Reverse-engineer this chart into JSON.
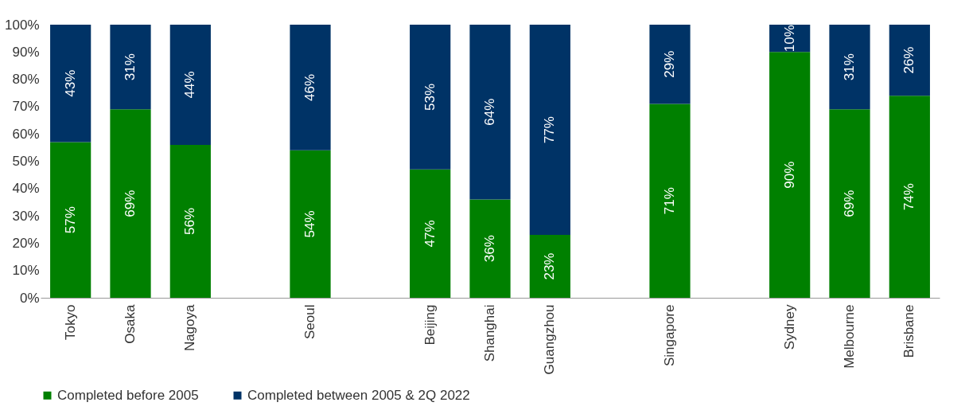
{
  "chart_data": {
    "type": "bar",
    "stacked": true,
    "categories": [
      "Tokyo",
      "Osaka",
      "Nagoya",
      null,
      "Seoul",
      null,
      "Beijing",
      "Shanghai",
      "Guangzhou",
      null,
      "Singapore",
      null,
      "Sydney",
      "Melbourne",
      "Brisbane"
    ],
    "series": [
      {
        "name": "Completed before 2005",
        "color": "#008000",
        "values": [
          57,
          69,
          56,
          null,
          54,
          null,
          47,
          36,
          23,
          null,
          71,
          null,
          90,
          69,
          74
        ],
        "value_labels": [
          "57%",
          "69%",
          "56%",
          null,
          "54%",
          null,
          "47%",
          "36%",
          "23%",
          null,
          "71%",
          null,
          "90%",
          "69%",
          "74%"
        ]
      },
      {
        "name": "Completed between 2005 & 2Q 2022",
        "color": "#003366",
        "values": [
          43,
          31,
          44,
          null,
          46,
          null,
          53,
          64,
          77,
          null,
          29,
          null,
          10,
          31,
          26
        ],
        "value_labels": [
          "43%",
          "31%",
          "44%",
          null,
          "46%",
          null,
          "53%",
          "64%",
          "77%",
          null,
          "29%",
          null,
          "10%",
          "31%",
          "26%"
        ]
      }
    ],
    "ylim": [
      0,
      100
    ],
    "yticks": [
      {
        "value": 0,
        "label": "0%"
      },
      {
        "value": 10,
        "label": "10%"
      },
      {
        "value": 20,
        "label": "20%"
      },
      {
        "value": 30,
        "label": "30%"
      },
      {
        "value": 40,
        "label": "40%"
      },
      {
        "value": 50,
        "label": "50%"
      },
      {
        "value": 60,
        "label": "60%"
      },
      {
        "value": 70,
        "label": "70%"
      },
      {
        "value": 80,
        "label": "80%"
      },
      {
        "value": 90,
        "label": "90%"
      },
      {
        "value": 100,
        "label": "100%"
      }
    ],
    "grid": false,
    "legend": "bottom"
  }
}
